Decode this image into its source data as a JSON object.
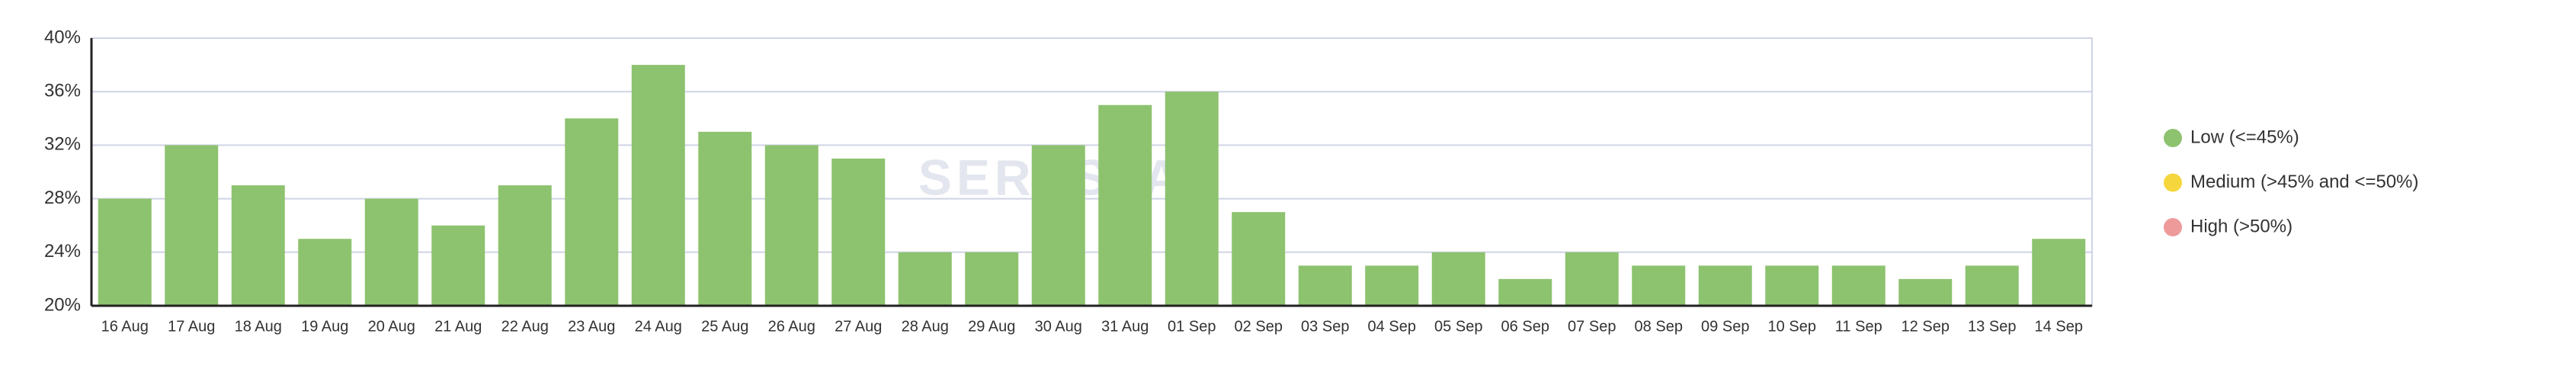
{
  "chart_data": {
    "type": "bar",
    "categories": [
      "16 Aug",
      "17 Aug",
      "18 Aug",
      "19 Aug",
      "20 Aug",
      "21 Aug",
      "22 Aug",
      "23 Aug",
      "24 Aug",
      "25 Aug",
      "26 Aug",
      "27 Aug",
      "28 Aug",
      "29 Aug",
      "30 Aug",
      "31 Aug",
      "01 Sep",
      "02 Sep",
      "03 Sep",
      "04 Sep",
      "05 Sep",
      "06 Sep",
      "07 Sep",
      "08 Sep",
      "09 Sep",
      "10 Sep",
      "11 Sep",
      "12 Sep",
      "13 Sep",
      "14 Sep"
    ],
    "values": [
      28,
      32,
      29,
      25,
      28,
      26,
      29,
      34,
      38,
      33,
      32,
      31,
      24,
      24,
      32,
      35,
      36,
      27,
      23,
      23,
      24,
      22,
      24,
      23,
      23,
      23,
      23,
      22,
      23,
      25
    ],
    "color": "#8dc26f",
    "ylim": [
      20,
      40
    ],
    "yticks": [
      {
        "value": 20,
        "label": "20%"
      },
      {
        "value": 24,
        "label": "24%"
      },
      {
        "value": 28,
        "label": "28%"
      },
      {
        "value": 32,
        "label": "32%"
      },
      {
        "value": 36,
        "label": "36%"
      },
      {
        "value": 40,
        "label": "40%"
      }
    ],
    "grid": true,
    "watermark": "SERPSTAT",
    "legend": [
      {
        "label": "Low (<=45%)",
        "color": "#8dc26f"
      },
      {
        "label": "Medium (>45% and <=50%)",
        "color": "#f5d63d"
      },
      {
        "label": "High (>50%)",
        "color": "#ee9a9a"
      }
    ]
  }
}
